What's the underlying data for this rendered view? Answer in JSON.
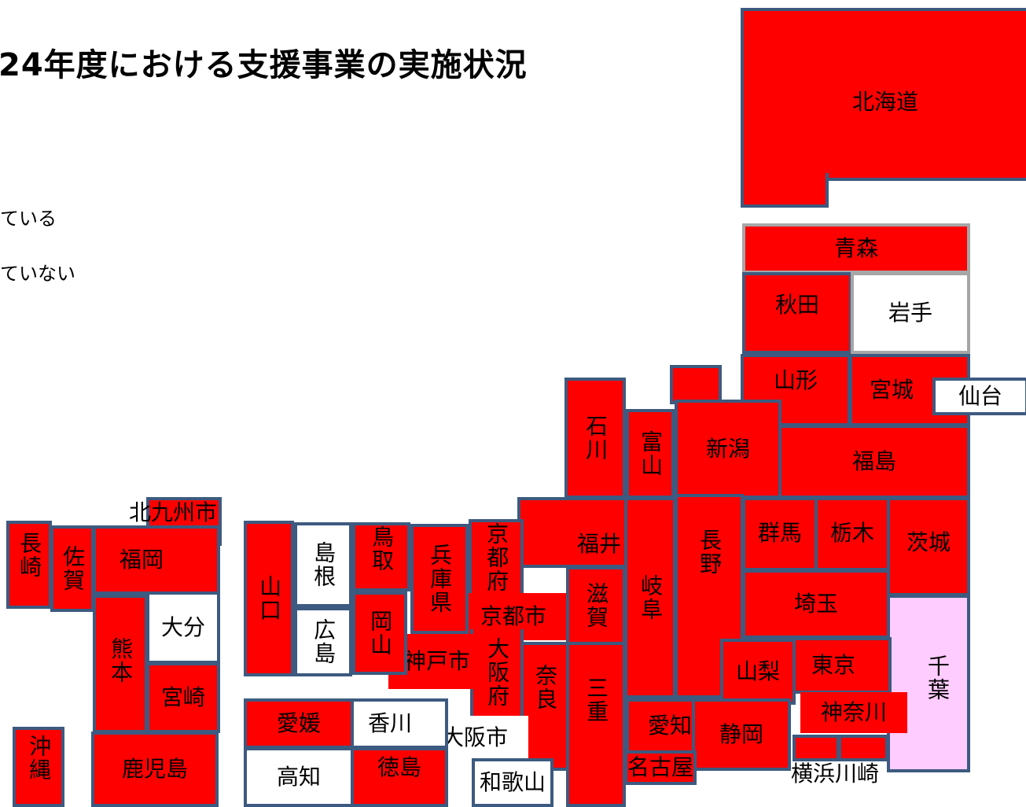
{
  "title": "24年度における支援事業の実施状況",
  "legend": {
    "implemented": "ている",
    "not_implemented": "ていない"
  },
  "colors": {
    "implemented": "#ff0000",
    "not_implemented": "#ffffff",
    "other": "#ffccff",
    "border": "#3d5a80"
  },
  "regions": {
    "hokkaido": "北海道",
    "aomori": "青森",
    "akita": "秋田",
    "iwate": "岩手",
    "yamagata": "山形",
    "miyagi": "宮城",
    "sendai": "仙台",
    "niigata": "新潟",
    "fukushima": "福島",
    "ishikawa": "石川",
    "toyama": "富山",
    "fukui": "福井",
    "gifu": "岐阜",
    "nagano": "長野",
    "gunma": "群馬",
    "tochigi": "栃木",
    "ibaraki": "茨城",
    "saitama": "埼玉",
    "chiba": "千葉",
    "tokyo": "東京",
    "kanagawa": "神奈川",
    "yokohama_kawasaki": "横浜川崎",
    "yamanashi": "山梨",
    "shizuoka": "静岡",
    "aichi": "愛知",
    "nagoya": "名古屋",
    "mie": "三重",
    "shiga": "滋賀",
    "kyoto_fu": "京都府",
    "kyoto_shi": "京都市",
    "osaka_fu": "大阪府",
    "osaka_shi": "大阪市",
    "nara": "奈良",
    "wakayama": "和歌山",
    "hyogo": "兵庫県",
    "kobe": "神戸市",
    "tottori": "鳥取",
    "shimane": "島根",
    "okayama": "岡山",
    "hiroshima": "広島",
    "yamaguchi": "山口",
    "kagawa": "香川",
    "ehime": "愛媛",
    "tokushima": "徳島",
    "kochi": "高知",
    "kitakyushu": "北九州市",
    "fukuoka": "福岡",
    "saga": "佐賀",
    "nagasaki": "長崎",
    "oita": "大分",
    "kumamoto": "熊本",
    "miyazaki": "宮崎",
    "kagoshima": "鹿児島",
    "okinawa": "沖縄"
  }
}
